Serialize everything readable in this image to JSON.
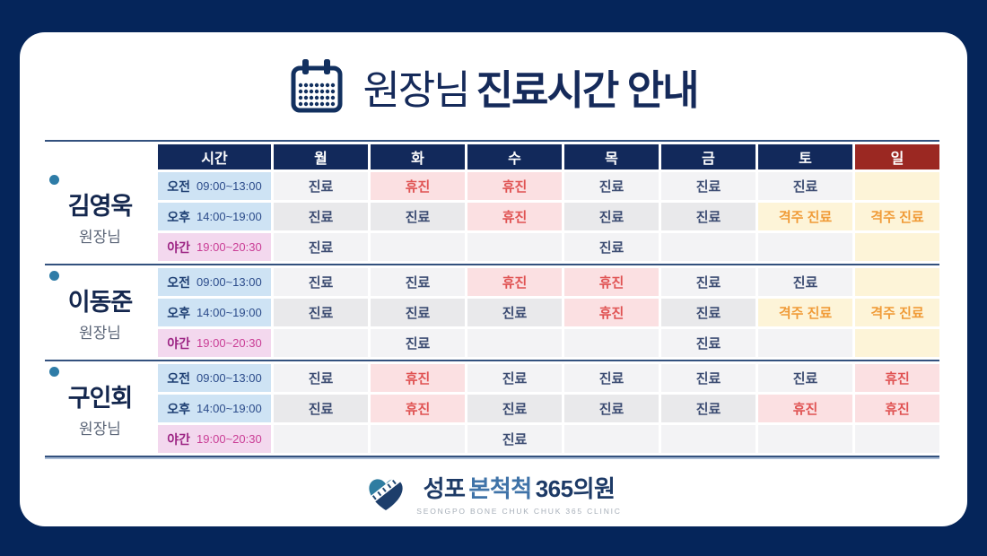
{
  "title": {
    "prefix": "원장님",
    "main": "진료시간 안내",
    "icon": "calendar-icon"
  },
  "table": {
    "time_header": "시간",
    "day_headers": [
      "월",
      "화",
      "수",
      "목",
      "금",
      "토",
      "일"
    ],
    "doctors": [
      {
        "name": "김영욱",
        "role": "원장님",
        "rows": [
          {
            "period": "오전",
            "time": "09:00~13:00",
            "period_type": "am",
            "cells": [
              {
                "label": "진료",
                "status": "consult"
              },
              {
                "label": "휴진",
                "status": "closed"
              },
              {
                "label": "휴진",
                "status": "closed"
              },
              {
                "label": "진료",
                "status": "consult"
              },
              {
                "label": "진료",
                "status": "consult"
              },
              {
                "label": "진료",
                "status": "consult"
              },
              {
                "label": "",
                "status": "none-sunday"
              }
            ]
          },
          {
            "period": "오후",
            "time": "14:00~19:00",
            "period_type": "pm",
            "cells": [
              {
                "label": "진료",
                "status": "consult"
              },
              {
                "label": "진료",
                "status": "consult"
              },
              {
                "label": "휴진",
                "status": "closed"
              },
              {
                "label": "진료",
                "status": "consult"
              },
              {
                "label": "진료",
                "status": "consult"
              },
              {
                "label": "격주 진료",
                "status": "biweekly"
              },
              {
                "label": "격주 진료",
                "status": "biweekly"
              }
            ]
          },
          {
            "period": "야간",
            "time": "19:00~20:30",
            "period_type": "night",
            "cells": [
              {
                "label": "진료",
                "status": "consult"
              },
              {
                "label": "",
                "status": "none"
              },
              {
                "label": "",
                "status": "none"
              },
              {
                "label": "진료",
                "status": "consult"
              },
              {
                "label": "",
                "status": "none"
              },
              {
                "label": "",
                "status": "none"
              },
              {
                "label": "",
                "status": "none-sunday"
              }
            ]
          }
        ]
      },
      {
        "name": "이동준",
        "role": "원장님",
        "rows": [
          {
            "period": "오전",
            "time": "09:00~13:00",
            "period_type": "am",
            "cells": [
              {
                "label": "진료",
                "status": "consult"
              },
              {
                "label": "진료",
                "status": "consult"
              },
              {
                "label": "휴진",
                "status": "closed"
              },
              {
                "label": "휴진",
                "status": "closed"
              },
              {
                "label": "진료",
                "status": "consult"
              },
              {
                "label": "진료",
                "status": "consult"
              },
              {
                "label": "",
                "status": "none-sunday"
              }
            ]
          },
          {
            "period": "오후",
            "time": "14:00~19:00",
            "period_type": "pm",
            "cells": [
              {
                "label": "진료",
                "status": "consult"
              },
              {
                "label": "진료",
                "status": "consult"
              },
              {
                "label": "진료",
                "status": "consult"
              },
              {
                "label": "휴진",
                "status": "closed"
              },
              {
                "label": "진료",
                "status": "consult"
              },
              {
                "label": "격주 진료",
                "status": "biweekly"
              },
              {
                "label": "격주 진료",
                "status": "biweekly"
              }
            ]
          },
          {
            "period": "야간",
            "time": "19:00~20:30",
            "period_type": "night",
            "cells": [
              {
                "label": "",
                "status": "none"
              },
              {
                "label": "진료",
                "status": "consult"
              },
              {
                "label": "",
                "status": "none"
              },
              {
                "label": "",
                "status": "none"
              },
              {
                "label": "진료",
                "status": "consult"
              },
              {
                "label": "",
                "status": "none"
              },
              {
                "label": "",
                "status": "none-sunday"
              }
            ]
          }
        ]
      },
      {
        "name": "구인회",
        "role": "원장님",
        "rows": [
          {
            "period": "오전",
            "time": "09:00~13:00",
            "period_type": "am",
            "cells": [
              {
                "label": "진료",
                "status": "consult"
              },
              {
                "label": "휴진",
                "status": "closed"
              },
              {
                "label": "진료",
                "status": "consult"
              },
              {
                "label": "진료",
                "status": "consult"
              },
              {
                "label": "진료",
                "status": "consult"
              },
              {
                "label": "진료",
                "status": "consult"
              },
              {
                "label": "휴진",
                "status": "closed"
              }
            ]
          },
          {
            "period": "오후",
            "time": "14:00~19:00",
            "period_type": "pm",
            "cells": [
              {
                "label": "진료",
                "status": "consult"
              },
              {
                "label": "휴진",
                "status": "closed"
              },
              {
                "label": "진료",
                "status": "consult"
              },
              {
                "label": "진료",
                "status": "consult"
              },
              {
                "label": "진료",
                "status": "consult"
              },
              {
                "label": "휴진",
                "status": "closed"
              },
              {
                "label": "휴진",
                "status": "closed"
              }
            ]
          },
          {
            "period": "야간",
            "time": "19:00~20:30",
            "period_type": "night",
            "cells": [
              {
                "label": "",
                "status": "none"
              },
              {
                "label": "",
                "status": "none"
              },
              {
                "label": "진료",
                "status": "consult"
              },
              {
                "label": "",
                "status": "none"
              },
              {
                "label": "",
                "status": "none"
              },
              {
                "label": "",
                "status": "none"
              },
              {
                "label": "",
                "status": "none"
              }
            ]
          }
        ]
      }
    ]
  },
  "footer": {
    "clinic_name_1": "성포",
    "clinic_name_2": "본척척",
    "clinic_name_3": "365의원",
    "clinic_sub": "SEONGPO BONE CHUK CHUK 365 CLINIC",
    "icon": "heart-spine-logo"
  },
  "colors": {
    "background_navy": "#05255a",
    "header_navy": "#12295b",
    "sunday_header_red": "#9b2822",
    "consult_text": "#3c4c72",
    "closed_text": "#e05353",
    "closed_bg": "#fbe0e2",
    "biweekly_text": "#f09b38",
    "biweekly_bg": "#fdf4d8",
    "am_pm_time_bg": "#cee3f4",
    "night_time_bg": "#f3d8ee",
    "night_label": "#9c2383",
    "accent_teal": "#2e7ca7"
  }
}
